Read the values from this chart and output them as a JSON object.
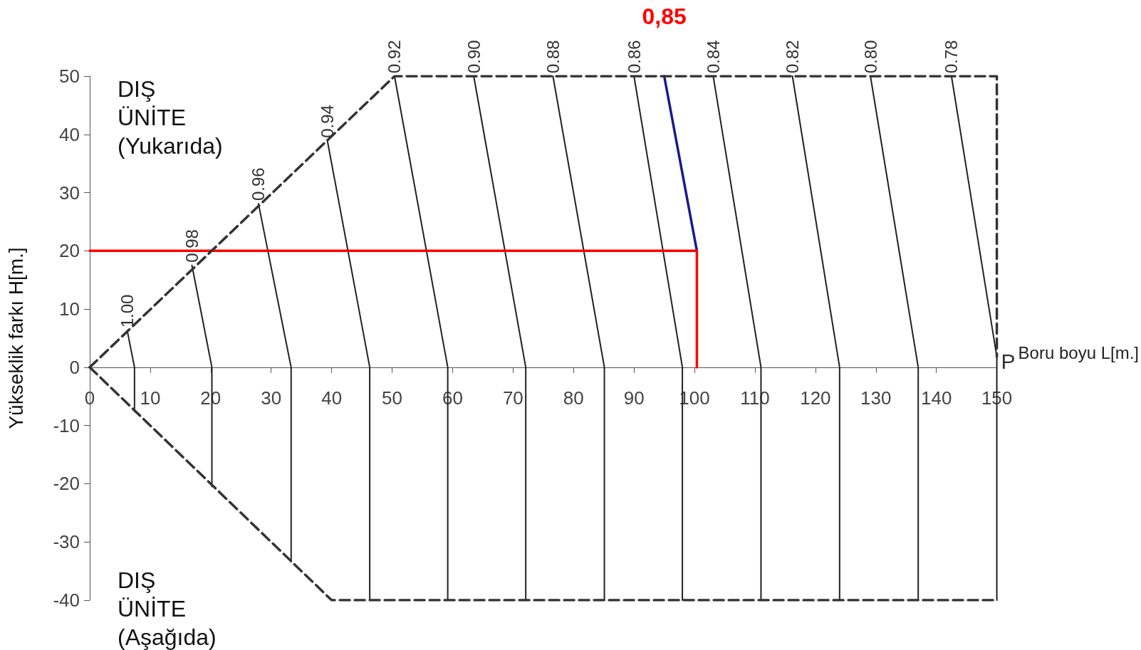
{
  "chart_data": {
    "type": "line",
    "xlabel": "Boru boyu L[m.]",
    "ylabel": "Yükseklik farkı H[m.]",
    "annotations": [
      "DIŞ ÜNİTE (Yukarıda)",
      "DIŞ ÜNİTE (Aşağıda)",
      {
        "text": "P",
        "x": 150,
        "y": 0
      },
      {
        "text": "0,85",
        "x": 95,
        "y": 50
      }
    ],
    "series": [
      {
        "name": "1.00",
        "color": "#222222",
        "x": [
          6.2,
          7.4,
          7.4
        ],
        "values": [
          6.3,
          0,
          -7.6
        ]
      },
      {
        "name": "0.98",
        "color": "#222222",
        "x": [
          16.9,
          20.2,
          20.2
        ],
        "values": [
          17.5,
          0,
          -20.5
        ]
      },
      {
        "name": "0.96",
        "color": "#222222",
        "x": [
          27.9,
          33.3,
          33.3
        ],
        "values": [
          28.1,
          0,
          -33.4
        ]
      },
      {
        "name": "0.94",
        "color": "#222222",
        "x": [
          39.3,
          46.3,
          46.3
        ],
        "values": [
          38.9,
          0,
          -40
        ]
      },
      {
        "name": "0.92",
        "color": "#222222",
        "x": [
          50.4,
          59.2,
          59.2
        ],
        "values": [
          50,
          0,
          -40
        ]
      },
      {
        "name": "0.90",
        "color": "#222222",
        "x": [
          63.5,
          72.1,
          72.1
        ],
        "values": [
          50,
          0,
          -40
        ]
      },
      {
        "name": "0.88",
        "color": "#222222",
        "x": [
          76.6,
          85.1,
          85.1
        ],
        "values": [
          50,
          0,
          -40
        ]
      },
      {
        "name": "0.86",
        "color": "#222222",
        "x": [
          90,
          98,
          98
        ],
        "values": [
          50,
          0,
          -40
        ]
      },
      {
        "name": "0.84",
        "color": "#222222",
        "x": [
          103.1,
          111,
          111
        ],
        "values": [
          50,
          0,
          -40
        ]
      },
      {
        "name": "0.82",
        "color": "#222222",
        "x": [
          116.2,
          124,
          124
        ],
        "values": [
          50,
          0,
          -40
        ]
      },
      {
        "name": "0.80",
        "color": "#222222",
        "x": [
          129.1,
          137,
          137
        ],
        "values": [
          50,
          0,
          -40
        ]
      },
      {
        "name": "0.78",
        "color": "#222222",
        "x": [
          142.5,
          150,
          150
        ],
        "values": [
          50,
          1.8,
          -40
        ]
      },
      {
        "color": "#1a1a8c",
        "x": [
          95,
          100.4
        ],
        "values": [
          50,
          20
        ]
      },
      {
        "color": "#ff0000",
        "x": [
          0,
          100.4,
          100.4
        ],
        "values": [
          20,
          20,
          0
        ]
      },
      {
        "color": "#333333",
        "line_style": "dashed",
        "x": [
          0,
          50.4,
          150,
          150
        ],
        "values": [
          0,
          50,
          50,
          1.8
        ]
      },
      {
        "color": "#333333",
        "line_style": "dashed",
        "x": [
          0,
          40,
          150
        ],
        "values": [
          0,
          -40,
          -40
        ]
      }
    ],
    "xlim": [
      0,
      150
    ],
    "xticks": [
      0,
      10,
      20,
      30,
      40,
      50,
      60,
      70,
      80,
      90,
      100,
      110,
      120,
      130,
      140,
      150
    ],
    "ylim": [
      -40,
      50
    ],
    "yticks": [
      -40,
      -30,
      -20,
      -10,
      0,
      10,
      20,
      30,
      40,
      50
    ],
    "grid": false,
    "legend": false,
    "line_style": "solid"
  }
}
